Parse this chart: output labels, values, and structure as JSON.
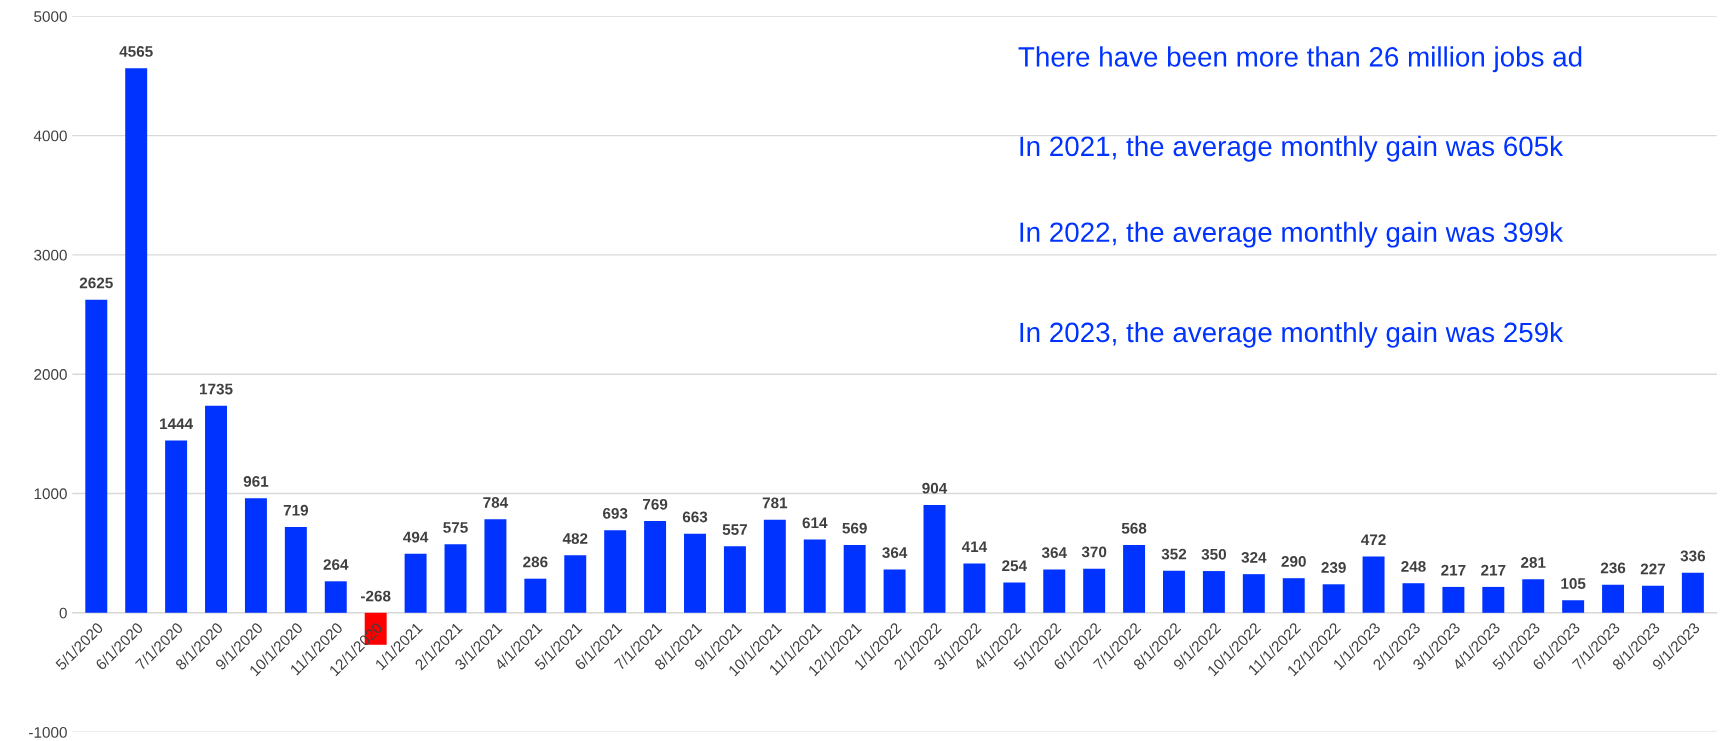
{
  "chart_data": {
    "type": "bar",
    "categories": [
      "5/1/2020",
      "6/1/2020",
      "7/1/2020",
      "8/1/2020",
      "9/1/2020",
      "10/1/2020",
      "11/1/2020",
      "12/1/2020",
      "1/1/2021",
      "2/1/2021",
      "3/1/2021",
      "4/1/2021",
      "5/1/2021",
      "6/1/2021",
      "7/1/2021",
      "8/1/2021",
      "9/1/2021",
      "10/1/2021",
      "11/1/2021",
      "12/1/2021",
      "1/1/2022",
      "2/1/2022",
      "3/1/2022",
      "4/1/2022",
      "5/1/2022",
      "6/1/2022",
      "7/1/2022",
      "8/1/2022",
      "9/1/2022",
      "10/1/2022",
      "11/1/2022",
      "12/1/2022",
      "1/1/2023",
      "2/1/2023",
      "3/1/2023",
      "4/1/2023",
      "5/1/2023",
      "6/1/2023",
      "7/1/2023",
      "8/1/2023",
      "9/1/2023"
    ],
    "values": [
      2625,
      4565,
      1444,
      1735,
      961,
      719,
      264,
      -268,
      494,
      575,
      784,
      286,
      482,
      693,
      769,
      663,
      557,
      781,
      614,
      569,
      364,
      904,
      414,
      254,
      364,
      370,
      568,
      352,
      350,
      324,
      290,
      239,
      472,
      248,
      217,
      217,
      281,
      105,
      236,
      227,
      336
    ],
    "colors": [
      "#0033ff",
      "#0033ff",
      "#0033ff",
      "#0033ff",
      "#0033ff",
      "#0033ff",
      "#0033ff",
      "#ff0000",
      "#0033ff",
      "#0033ff",
      "#0033ff",
      "#0033ff",
      "#0033ff",
      "#0033ff",
      "#0033ff",
      "#0033ff",
      "#0033ff",
      "#0033ff",
      "#0033ff",
      "#0033ff",
      "#0033ff",
      "#0033ff",
      "#0033ff",
      "#0033ff",
      "#0033ff",
      "#0033ff",
      "#0033ff",
      "#0033ff",
      "#0033ff",
      "#0033ff",
      "#0033ff",
      "#0033ff",
      "#0033ff",
      "#0033ff",
      "#0033ff",
      "#0033ff",
      "#0033ff",
      "#0033ff",
      "#0033ff",
      "#0033ff",
      "#0033ff"
    ],
    "ylim": [
      -1000,
      5000
    ],
    "yticks": [
      -1000,
      0,
      1000,
      2000,
      3000,
      4000,
      5000
    ],
    "grid": "y",
    "data_labels": true,
    "legend": false,
    "annotations": [
      "There have been more than 26 million jobs ad",
      "In 2021, the average monthly gain was 605k",
      "In 2022, the average monthly gain was 399k",
      "In 2023, the average monthly gain was 259k"
    ]
  }
}
